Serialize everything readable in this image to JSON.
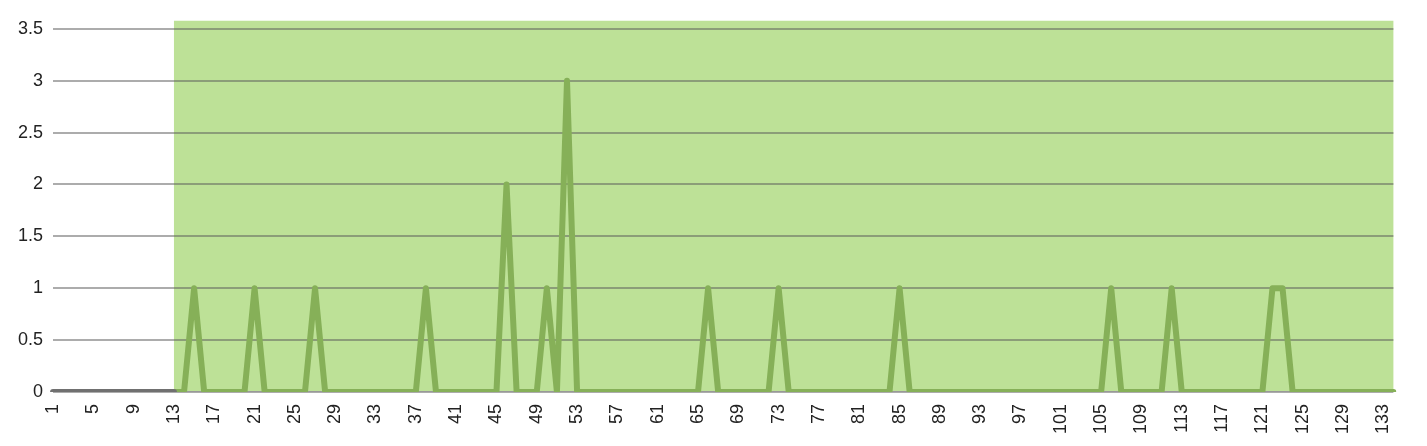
{
  "chart_data": {
    "type": "line",
    "categories": [
      "1",
      null,
      null,
      null,
      "5",
      null,
      null,
      null,
      "9",
      null,
      null,
      null,
      "13",
      null,
      null,
      null,
      "17",
      null,
      null,
      null,
      "21",
      null,
      null,
      null,
      "25",
      null,
      null,
      null,
      "29",
      null,
      null,
      null,
      "33",
      null,
      null,
      null,
      "37",
      null,
      null,
      null,
      "41",
      null,
      null,
      null,
      "45",
      null,
      null,
      null,
      "49",
      null,
      null,
      null,
      "53",
      null,
      null,
      null,
      "57",
      null,
      null,
      null,
      "61",
      null,
      null,
      null,
      "65",
      null,
      null,
      null,
      "69",
      null,
      null,
      null,
      "73",
      null,
      null,
      null,
      "77",
      null,
      null,
      null,
      "81",
      null,
      null,
      null,
      "85",
      null,
      null,
      null,
      "89",
      null,
      null,
      null,
      "93",
      null,
      null,
      null,
      "97",
      null,
      null,
      null,
      "101",
      null,
      null,
      null,
      "105",
      null,
      null,
      null,
      "109",
      null,
      null,
      null,
      "113",
      null,
      null,
      null,
      "117",
      null,
      null,
      null,
      "121",
      null,
      null,
      null,
      "125",
      null,
      null,
      null,
      "129",
      null,
      null,
      null,
      "133",
      null
    ],
    "series": [
      {
        "color": "#707070",
        "values": [
          0,
          0,
          0,
          0,
          0,
          0,
          0,
          0,
          0,
          0,
          0,
          0,
          0,
          null,
          null,
          null,
          null,
          null,
          null,
          null,
          null,
          null,
          null,
          null,
          null,
          null,
          null,
          null,
          null,
          null,
          null,
          null,
          null,
          null,
          null,
          null,
          null,
          null,
          null,
          null,
          null,
          null,
          null,
          null,
          null,
          null,
          null,
          null,
          null,
          null,
          null,
          null,
          null,
          null,
          null,
          null,
          null,
          null,
          null,
          null,
          null,
          null,
          null,
          null,
          null,
          null,
          null,
          null,
          null,
          null,
          null,
          null,
          null,
          null,
          null,
          null,
          null,
          null,
          null,
          null,
          null,
          null,
          null,
          null,
          null,
          null,
          null,
          null,
          null,
          null,
          null,
          null,
          null,
          null,
          null,
          null,
          null,
          null,
          null,
          null,
          null,
          null,
          null,
          null,
          null,
          null,
          null,
          null,
          null,
          null,
          null,
          null,
          null,
          null,
          null,
          null,
          null,
          null,
          null,
          null,
          null,
          null,
          null,
          null,
          null,
          null,
          null,
          null,
          null,
          null,
          null,
          null,
          null,
          null
        ]
      },
      {
        "color": "#86b058",
        "values": [
          null,
          null,
          null,
          null,
          null,
          null,
          null,
          null,
          null,
          null,
          null,
          null,
          0,
          0,
          1,
          0,
          0,
          0,
          0,
          0,
          1,
          0,
          0,
          0,
          0,
          0,
          1,
          0,
          0,
          0,
          0,
          0,
          0,
          0,
          0,
          0,
          0,
          1,
          0,
          0,
          0,
          0,
          0,
          0,
          0,
          2,
          0,
          0,
          0,
          1,
          0,
          3,
          0,
          0,
          0,
          0,
          0,
          0,
          0,
          0,
          0,
          0,
          0,
          0,
          0,
          1,
          0,
          0,
          0,
          0,
          0,
          0,
          1,
          0,
          0,
          0,
          0,
          0,
          0,
          0,
          0,
          0,
          0,
          0,
          1,
          0,
          0,
          0,
          0,
          0,
          0,
          0,
          0,
          0,
          0,
          0,
          0,
          0,
          0,
          0,
          0,
          0,
          0,
          0,
          0,
          1,
          0,
          0,
          0,
          0,
          0,
          1,
          0,
          0,
          0,
          0,
          0,
          0,
          0,
          0,
          0,
          1,
          1,
          0,
          0,
          0,
          0,
          0,
          0,
          0,
          0,
          0,
          0,
          0
        ]
      }
    ],
    "ylim": [
      0,
      3.5
    ],
    "yticks": [
      0,
      0.5,
      1,
      1.5,
      2,
      2.5,
      3,
      3.5
    ],
    "grid": "y",
    "legend": false,
    "marker": "none",
    "line_style": "solid",
    "bands": [
      {
        "axis": "x",
        "from": "13",
        "to": "133",
        "color": "#bde197"
      }
    ]
  }
}
